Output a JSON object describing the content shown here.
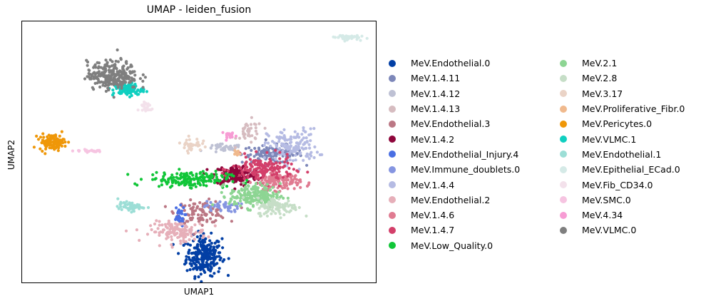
{
  "chart_data": {
    "type": "scatter",
    "title": "UMAP - leiden_fusion",
    "xlabel": "UMAP1",
    "ylabel": "UMAP2",
    "grid": false,
    "legend_placement": "right, outside plot, two columns",
    "categories": [
      {
        "name": "MeV.Endothelial.0",
        "color": "#023fa5",
        "center": [
          6.0,
          -7.0
        ],
        "spread": [
          0.35,
          0.9
        ],
        "n": 260
      },
      {
        "name": "MeV.1.4.11",
        "color": "#7d87b9",
        "center": [
          8.7,
          2.3
        ],
        "spread": [
          0.6,
          0.4
        ],
        "n": 120
      },
      {
        "name": "MeV.1.4.12",
        "color": "#bec1d4",
        "center": [
          6.8,
          2.8
        ],
        "spread": [
          0.35,
          0.2
        ],
        "n": 40
      },
      {
        "name": "MeV.1.4.13",
        "color": "#d6bcc0",
        "center": [
          7.8,
          4.3
        ],
        "spread": [
          0.25,
          0.55
        ],
        "n": 40
      },
      {
        "name": "MeV.Endothelial.3",
        "color": "#bb7784",
        "center": [
          5.9,
          -3.0
        ],
        "spread": [
          0.5,
          0.5
        ],
        "n": 100
      },
      {
        "name": "MeV.1.4.2",
        "color": "#8e063b",
        "center": [
          7.3,
          0.4
        ],
        "spread": [
          0.45,
          0.45
        ],
        "n": 180
      },
      {
        "name": "MeV.Endothelial_Injury.4",
        "color": "#4a6fe3",
        "center": [
          5.0,
          -3.4
        ],
        "spread": [
          0.12,
          0.45
        ],
        "n": 30
      },
      {
        "name": "MeV.Immune_doublets.0",
        "color": "#8595e1",
        "center": [
          6.7,
          -2.5
        ],
        "spread": [
          0.35,
          0.25
        ],
        "n": 45
      },
      {
        "name": "MeV.1.4.4",
        "color": "#b5bbe3",
        "center": [
          9.5,
          3.0
        ],
        "spread": [
          0.5,
          0.8
        ],
        "n": 140
      },
      {
        "name": "MeV.Endothelial.2",
        "color": "#e6afb9",
        "center": [
          5.0,
          -4.8
        ],
        "spread": [
          0.55,
          0.45
        ],
        "n": 130
      },
      {
        "name": "MeV.1.4.6",
        "color": "#e07b91",
        "center": [
          8.9,
          -0.2
        ],
        "spread": [
          0.45,
          0.4
        ],
        "n": 130
      },
      {
        "name": "MeV.1.4.7",
        "color": "#d33f6a",
        "center": [
          8.3,
          0.9
        ],
        "spread": [
          0.6,
          0.6
        ],
        "n": 160
      },
      {
        "name": "MeV.Low_Quality.0",
        "color": "#11c638",
        "center": [
          5.4,
          0.0
        ],
        "spread": [
          0.8,
          0.35
        ],
        "n": 170
      },
      {
        "name": "MeV.2.1",
        "color": "#8dd593",
        "center": [
          8.0,
          -1.5
        ],
        "spread": [
          0.5,
          0.55
        ],
        "n": 200
      },
      {
        "name": "MeV.2.8",
        "color": "#c6dec7",
        "center": [
          8.9,
          -2.5
        ],
        "spread": [
          0.4,
          0.4
        ],
        "n": 110
      },
      {
        "name": "MeV.3.17",
        "color": "#ead3c6",
        "center": [
          5.5,
          3.2
        ],
        "spread": [
          0.2,
          0.3
        ],
        "n": 40
      },
      {
        "name": "MeV.Proliferative_Fibr.0",
        "color": "#f0b98d",
        "center": [
          7.3,
          2.4
        ],
        "spread": [
          0.08,
          0.12
        ],
        "n": 10
      },
      {
        "name": "MeV.Pericytes.0",
        "color": "#ef9708",
        "center": [
          0.0,
          3.4
        ],
        "spread": [
          0.25,
          0.35
        ],
        "n": 110
      },
      {
        "name": "MeV.VLMC.1",
        "color": "#0fcfc0",
        "center": [
          3.0,
          8.2
        ],
        "spread": [
          0.3,
          0.3
        ],
        "n": 90
      },
      {
        "name": "MeV.Endothelial.1",
        "color": "#9cded6",
        "center": [
          3.1,
          -2.5
        ],
        "spread": [
          0.25,
          0.2
        ],
        "n": 55
      },
      {
        "name": "MeV.Epithelial_ECad.0",
        "color": "#d5eae7",
        "center": [
          11.6,
          13.0
        ],
        "spread": [
          0.25,
          0.12
        ],
        "n": 45
      },
      {
        "name": "MeV.Fib_CD34.0",
        "color": "#f3e1eb",
        "center": [
          3.7,
          6.6
        ],
        "spread": [
          0.15,
          0.3
        ],
        "n": 25
      },
      {
        "name": "MeV.SMC.0",
        "color": "#f6c4e1",
        "center": [
          1.5,
          2.6
        ],
        "spread": [
          0.3,
          0.06
        ],
        "n": 22
      },
      {
        "name": "MeV.4.34",
        "color": "#f79cd4",
        "center": [
          7.0,
          4.0
        ],
        "spread": [
          0.15,
          0.2
        ],
        "n": 18
      },
      {
        "name": "MeV.VLMC.0",
        "color": "#7f7f7f",
        "center": [
          2.4,
          9.5
        ],
        "spread": [
          0.5,
          0.65
        ],
        "n": 260
      }
    ],
    "xlim": [
      -1.2,
      12.8
    ],
    "ylim": [
      -9.5,
      14.5
    ]
  }
}
